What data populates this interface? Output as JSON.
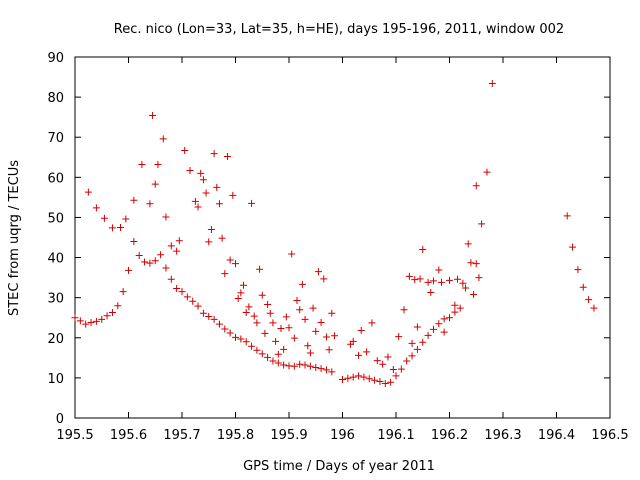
{
  "chart_data": {
    "type": "scatter",
    "title": "Rec. nico (Lon=33, Lat=35, h=HE), days 195-196, 2011, window 002",
    "xlabel": "GPS time / Days of year 2011",
    "ylabel": "STEC from uqrg / TECUs",
    "xlim": [
      195.5,
      196.5
    ],
    "ylim": [
      0,
      90
    ],
    "xticks": [
      195.5,
      195.6,
      195.7,
      195.8,
      195.9,
      196,
      196.1,
      196.2,
      196.3,
      196.4,
      196.5
    ],
    "xtick_labels": [
      "195.5",
      "195.6",
      "195.7",
      "195.8",
      "195.9",
      "196",
      "196.1",
      "196.2",
      "196.3",
      "196.4",
      "196.5"
    ],
    "yticks": [
      0,
      10,
      20,
      30,
      40,
      50,
      60,
      70,
      80,
      90
    ],
    "ytick_labels": [
      "0",
      "10",
      "20",
      "30",
      "40",
      "50",
      "60",
      "70",
      "80",
      "90"
    ],
    "grid": false,
    "legend": "none",
    "marker": "+",
    "point_color": "#d40000",
    "points": [
      [
        195.5,
        25.0
      ],
      [
        195.51,
        24.2
      ],
      [
        195.52,
        23.4
      ],
      [
        195.53,
        23.8
      ],
      [
        195.54,
        24.1
      ],
      [
        195.55,
        24.6
      ],
      [
        195.56,
        25.5
      ],
      [
        195.57,
        26.3
      ],
      [
        195.58,
        28.0
      ],
      [
        195.59,
        31.5
      ],
      [
        195.6,
        36.8
      ],
      [
        195.61,
        44.0
      ],
      [
        195.62,
        40.5
      ],
      [
        195.63,
        38.9
      ],
      [
        195.64,
        38.6
      ],
      [
        195.65,
        39.2
      ],
      [
        195.66,
        40.7
      ],
      [
        195.67,
        37.4
      ],
      [
        195.68,
        34.6
      ],
      [
        195.69,
        32.3
      ],
      [
        195.7,
        31.5
      ],
      [
        195.71,
        30.2
      ],
      [
        195.72,
        29.1
      ],
      [
        195.73,
        27.9
      ],
      [
        195.74,
        26.1
      ],
      [
        195.75,
        25.3
      ],
      [
        195.76,
        24.6
      ],
      [
        195.77,
        23.4
      ],
      [
        195.78,
        22.2
      ],
      [
        195.79,
        21.2
      ],
      [
        195.8,
        20.1
      ],
      [
        195.81,
        19.7
      ],
      [
        195.82,
        19.0
      ],
      [
        195.83,
        17.9
      ],
      [
        195.84,
        16.9
      ],
      [
        195.85,
        16.0
      ],
      [
        195.86,
        15.1
      ],
      [
        195.87,
        14.2
      ],
      [
        195.88,
        13.7
      ],
      [
        195.89,
        13.2
      ],
      [
        195.9,
        13.0
      ],
      [
        195.91,
        12.9
      ],
      [
        195.92,
        13.4
      ],
      [
        195.93,
        13.2
      ],
      [
        195.94,
        12.9
      ],
      [
        195.95,
        12.6
      ],
      [
        195.96,
        12.3
      ],
      [
        195.97,
        12.0
      ],
      [
        195.98,
        11.5
      ],
      [
        196.0,
        9.6
      ],
      [
        196.01,
        9.9
      ],
      [
        196.02,
        10.2
      ],
      [
        196.03,
        10.5
      ],
      [
        196.04,
        10.2
      ],
      [
        196.05,
        9.8
      ],
      [
        196.06,
        9.4
      ],
      [
        196.07,
        9.1
      ],
      [
        196.08,
        8.6
      ],
      [
        196.09,
        8.9
      ],
      [
        196.1,
        10.5
      ],
      [
        196.11,
        12.2
      ],
      [
        196.12,
        14.2
      ],
      [
        196.13,
        15.5
      ],
      [
        196.14,
        17.1
      ],
      [
        196.15,
        18.9
      ],
      [
        196.16,
        20.6
      ],
      [
        196.17,
        22.1
      ],
      [
        196.18,
        23.5
      ],
      [
        196.19,
        24.7
      ],
      [
        196.2,
        25.0
      ],
      [
        196.21,
        26.4
      ],
      [
        196.22,
        27.4
      ],
      [
        196.23,
        32.4
      ],
      [
        196.24,
        38.7
      ],
      [
        196.25,
        38.5
      ],
      [
        196.26,
        48.4
      ],
      [
        196.27,
        61.3
      ],
      [
        196.28,
        83.4
      ],
      [
        196.42,
        50.4
      ],
      [
        196.43,
        42.6
      ],
      [
        196.44,
        37.0
      ],
      [
        196.45,
        32.6
      ],
      [
        196.46,
        29.5
      ],
      [
        196.47,
        27.4
      ],
      [
        195.525,
        56.3
      ],
      [
        195.54,
        52.4
      ],
      [
        195.555,
        49.8
      ],
      [
        195.57,
        47.4
      ],
      [
        195.585,
        47.5
      ],
      [
        195.595,
        49.6
      ],
      [
        195.61,
        54.3
      ],
      [
        195.625,
        63.2
      ],
      [
        195.64,
        53.4
      ],
      [
        195.65,
        58.3
      ],
      [
        195.645,
        75.4
      ],
      [
        195.655,
        63.2
      ],
      [
        195.665,
        69.6
      ],
      [
        195.67,
        50.1
      ],
      [
        195.68,
        42.9
      ],
      [
        195.69,
        41.6
      ],
      [
        195.695,
        44.2
      ],
      [
        195.705,
        66.7
      ],
      [
        195.715,
        61.7
      ],
      [
        195.725,
        54.0
      ],
      [
        195.73,
        52.6
      ],
      [
        195.735,
        61.0
      ],
      [
        195.74,
        59.4
      ],
      [
        195.745,
        56.1
      ],
      [
        195.75,
        43.9
      ],
      [
        195.755,
        47.0
      ],
      [
        195.76,
        65.9
      ],
      [
        195.765,
        57.5
      ],
      [
        195.77,
        53.4
      ],
      [
        195.775,
        44.8
      ],
      [
        195.78,
        36.0
      ],
      [
        195.785,
        65.2
      ],
      [
        195.79,
        39.4
      ],
      [
        195.795,
        55.5
      ],
      [
        195.8,
        38.5
      ],
      [
        195.805,
        29.8
      ],
      [
        195.81,
        31.2
      ],
      [
        195.815,
        33.1
      ],
      [
        195.82,
        26.3
      ],
      [
        195.825,
        27.7
      ],
      [
        195.83,
        53.5
      ],
      [
        195.835,
        25.4
      ],
      [
        195.84,
        23.7
      ],
      [
        195.845,
        37.1
      ],
      [
        195.85,
        30.6
      ],
      [
        195.855,
        21.1
      ],
      [
        195.86,
        28.3
      ],
      [
        195.865,
        26.1
      ],
      [
        195.87,
        23.7
      ],
      [
        195.875,
        19.1
      ],
      [
        195.88,
        15.9
      ],
      [
        195.885,
        22.3
      ],
      [
        195.89,
        17.1
      ],
      [
        195.895,
        25.2
      ],
      [
        195.9,
        22.5
      ],
      [
        195.905,
        40.9
      ],
      [
        195.91,
        19.9
      ],
      [
        195.915,
        29.3
      ],
      [
        195.92,
        27.0
      ],
      [
        195.925,
        33.3
      ],
      [
        195.93,
        24.6
      ],
      [
        195.935,
        18.0
      ],
      [
        195.94,
        16.2
      ],
      [
        195.945,
        27.4
      ],
      [
        195.95,
        21.6
      ],
      [
        195.955,
        36.5
      ],
      [
        195.96,
        23.8
      ],
      [
        195.965,
        34.7
      ],
      [
        195.97,
        20.2
      ],
      [
        195.975,
        17.0
      ],
      [
        195.98,
        26.1
      ],
      [
        195.985,
        20.5
      ],
      [
        196.015,
        18.4
      ],
      [
        196.02,
        19.1
      ],
      [
        196.03,
        15.6
      ],
      [
        196.035,
        21.8
      ],
      [
        196.045,
        16.5
      ],
      [
        196.055,
        23.7
      ],
      [
        196.065,
        14.3
      ],
      [
        196.075,
        13.4
      ],
      [
        196.085,
        15.2
      ],
      [
        196.095,
        12.1
      ],
      [
        196.105,
        20.3
      ],
      [
        196.115,
        27.0
      ],
      [
        196.125,
        35.3
      ],
      [
        196.13,
        18.6
      ],
      [
        196.135,
        34.5
      ],
      [
        196.14,
        22.7
      ],
      [
        196.145,
        34.7
      ],
      [
        196.15,
        42.0
      ],
      [
        196.16,
        33.8
      ],
      [
        196.165,
        31.3
      ],
      [
        196.17,
        34.2
      ],
      [
        196.18,
        36.9
      ],
      [
        196.185,
        33.8
      ],
      [
        196.19,
        21.4
      ],
      [
        196.2,
        34.3
      ],
      [
        196.21,
        28.1
      ],
      [
        196.215,
        34.6
      ],
      [
        196.225,
        33.6
      ],
      [
        196.235,
        43.4
      ],
      [
        196.245,
        30.8
      ],
      [
        196.25,
        57.9
      ],
      [
        196.255,
        35.0
      ]
    ]
  }
}
